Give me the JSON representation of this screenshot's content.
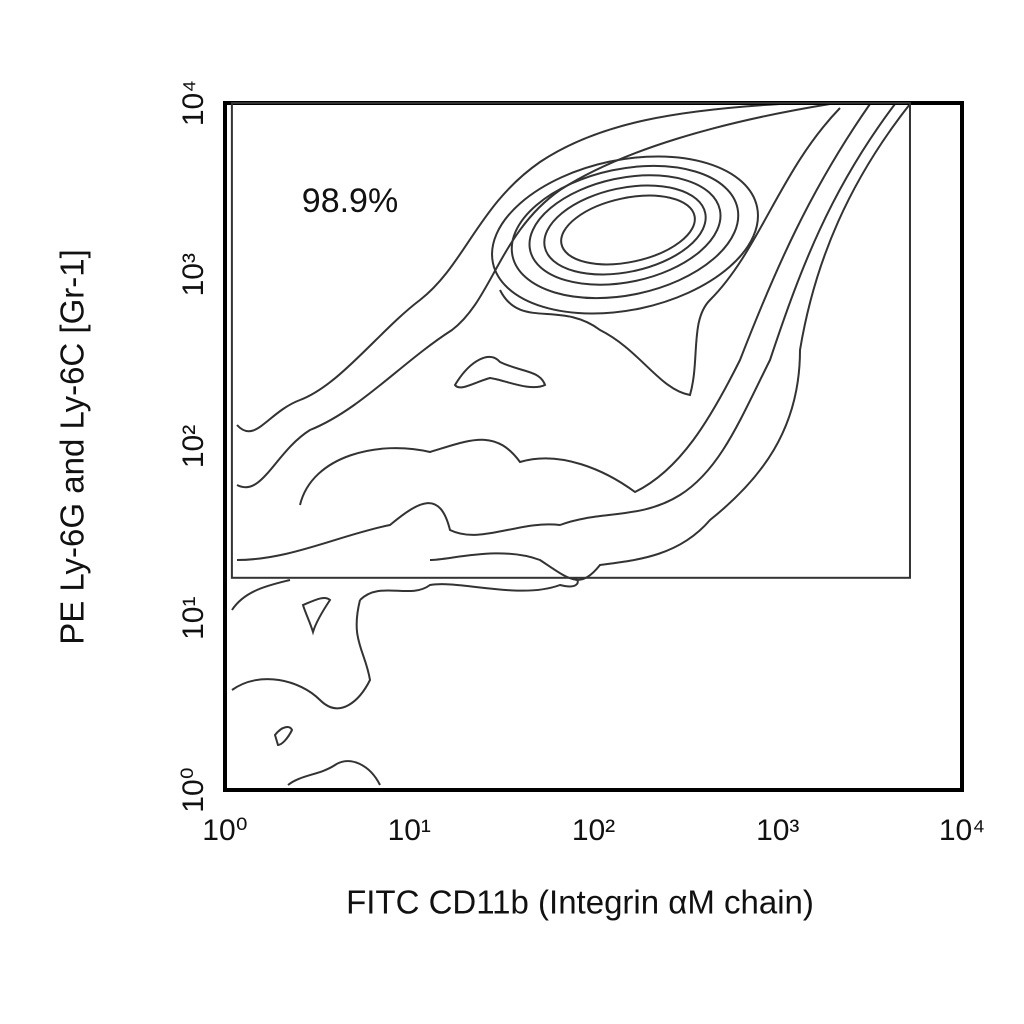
{
  "chart_data": {
    "type": "contour",
    "xlabel": "FITC CD11b (Integrin αM chain)",
    "ylabel": "PE Ly-6G and Ly-6C [Gr-1]",
    "log_x": true,
    "log_y": true,
    "xlim": [
      1,
      10000
    ],
    "ylim": [
      1,
      10000
    ],
    "xticks": [
      {
        "value": 1,
        "label": "10⁰"
      },
      {
        "value": 10,
        "label": "10¹"
      },
      {
        "value": 100,
        "label": "10²"
      },
      {
        "value": 1000,
        "label": "10³"
      },
      {
        "value": 10000,
        "label": "10⁴"
      }
    ],
    "yticks": [
      {
        "value": 1,
        "label": "10⁰"
      },
      {
        "value": 10,
        "label": "10¹"
      },
      {
        "value": 100,
        "label": "10²"
      },
      {
        "value": 1000,
        "label": "10³"
      },
      {
        "value": 10000,
        "label": "10⁴"
      }
    ],
    "gate": {
      "x": [
        1.09,
        5220
      ],
      "y": [
        17.2,
        10000
      ],
      "label": "98.9%"
    }
  }
}
